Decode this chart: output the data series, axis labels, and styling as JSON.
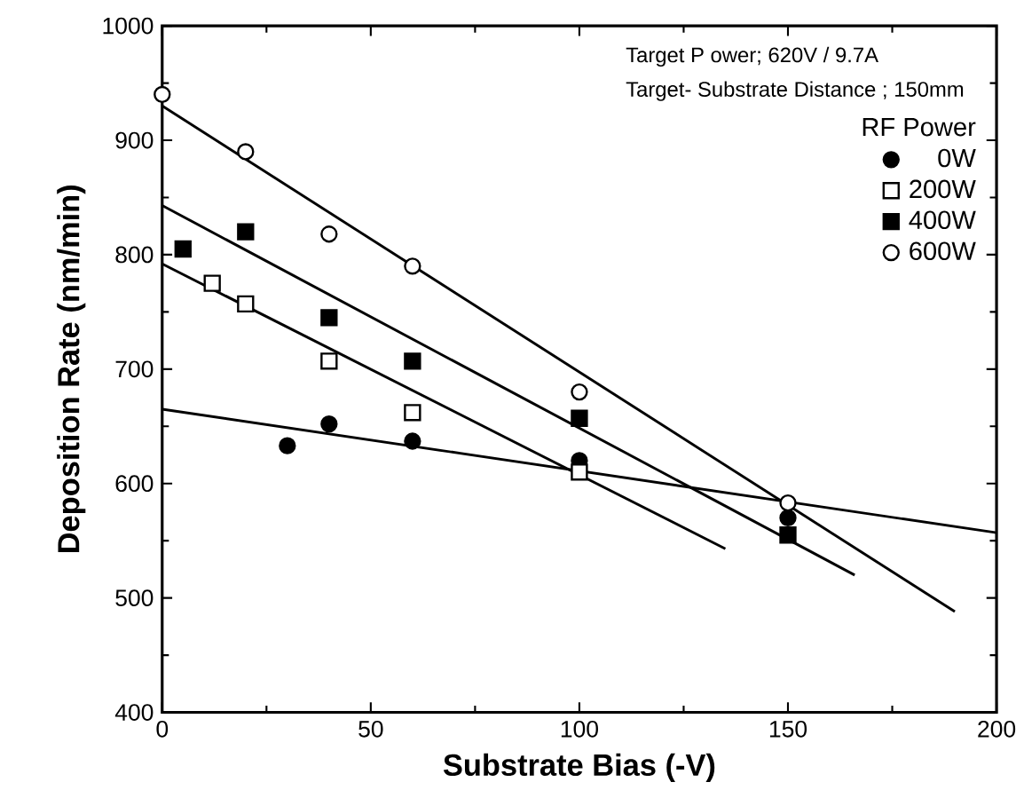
{
  "chart_data": {
    "type": "scatter",
    "xlabel": "Substrate Bias (-V)",
    "ylabel": "Deposition Rate (nm/min)",
    "legend_title": "RF Power",
    "legend": "top right",
    "grid": false,
    "annotations": [
      "Target P ower; 620V / 9.7A",
      "Target- Substrate  Distance ; 150mm"
    ],
    "xlim": [
      0,
      200
    ],
    "xticks": [
      0,
      50,
      100,
      150,
      200
    ],
    "ylim": [
      400,
      1000
    ],
    "yticks": [
      400,
      500,
      600,
      700,
      800,
      900,
      1000
    ],
    "series": [
      {
        "name": "0W",
        "color": "#000000",
        "marker": "circle",
        "x": [
          30,
          40,
          60,
          100,
          150
        ],
        "values": [
          633,
          652,
          637,
          620,
          570
        ]
      },
      {
        "name": "200W",
        "color": "#ffffff",
        "marker": "square",
        "x": [
          12,
          20,
          40,
          60,
          100
        ],
        "values": [
          775,
          757,
          707,
          662,
          610
        ]
      },
      {
        "name": "400W",
        "color": "#000000",
        "marker": "square",
        "x": [
          5,
          20,
          40,
          60,
          100,
          150
        ],
        "values": [
          805,
          820,
          745,
          707,
          657,
          555
        ]
      },
      {
        "name": "600W",
        "color": "#ffffff",
        "marker": "circle",
        "x": [
          0,
          20,
          40,
          60,
          100,
          150
        ],
        "values": [
          940,
          890,
          818,
          790,
          680,
          583
        ]
      },
      {
        "type": "line",
        "color": "#000000",
        "marker": "none",
        "x": [
          0,
          200
        ],
        "values": [
          665,
          557
        ]
      },
      {
        "type": "line",
        "color": "#000000",
        "marker": "none",
        "x": [
          0,
          135
        ],
        "values": [
          792,
          543
        ]
      },
      {
        "type": "line",
        "color": "#000000",
        "marker": "none",
        "x": [
          0,
          166
        ],
        "values": [
          843,
          520
        ]
      },
      {
        "type": "line",
        "color": "#000000",
        "marker": "none",
        "x": [
          0,
          190
        ],
        "values": [
          930,
          488
        ]
      }
    ]
  }
}
